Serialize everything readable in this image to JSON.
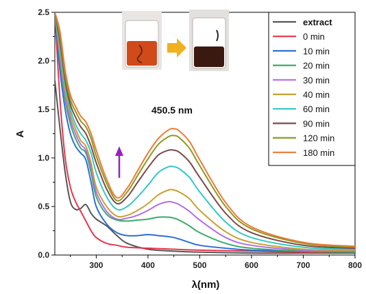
{
  "chart_data": {
    "type": "line",
    "xlabel": "λ(nm)",
    "ylabel": "A",
    "xlim": [
      220,
      800
    ],
    "ylim": [
      0,
      2.5
    ],
    "x_ticks": [
      300,
      400,
      500,
      600,
      700,
      800
    ],
    "y_ticks": [
      0.0,
      0.5,
      1.0,
      1.5,
      2.0,
      2.5
    ],
    "x_tick_labels": [
      "300",
      "400",
      "500",
      "600",
      "700",
      "800"
    ],
    "y_tick_labels": [
      "0.0",
      "0.5",
      "1.0",
      "1.5",
      "2.0",
      "2.5"
    ],
    "grid": false,
    "legend": "top-right",
    "annotation": "450.5 nm",
    "inset": "photo of two beakers: orange extract before, dark after reaction, with an orange arrow between",
    "series": [
      {
        "name": "extract",
        "color": "#555555",
        "x": [
          220,
          230,
          240,
          250,
          260,
          270,
          280,
          290,
          300,
          320,
          340,
          360,
          400,
          450,
          500,
          600,
          700,
          800
        ],
        "y": [
          1.8,
          1.3,
          0.85,
          0.55,
          0.47,
          0.48,
          0.52,
          0.43,
          0.37,
          0.3,
          0.2,
          0.12,
          0.06,
          0.04,
          0.03,
          0.02,
          0.02,
          0.02
        ]
      },
      {
        "name": "0 min",
        "color": "#e8344a",
        "x": [
          220,
          230,
          240,
          250,
          260,
          270,
          280,
          290,
          300,
          320,
          340,
          360,
          400,
          450,
          500,
          600,
          700,
          800
        ],
        "y": [
          2.5,
          1.6,
          1.0,
          0.7,
          0.55,
          0.45,
          0.35,
          0.25,
          0.18,
          0.12,
          0.1,
          0.08,
          0.07,
          0.06,
          0.05,
          0.04,
          0.03,
          0.03
        ]
      },
      {
        "name": "10 min",
        "color": "#2a6dd9",
        "x": [
          220,
          230,
          240,
          250,
          260,
          270,
          280,
          290,
          300,
          320,
          340,
          360,
          380,
          400,
          420,
          450,
          480,
          500,
          550,
          600,
          700,
          800
        ],
        "y": [
          2.5,
          1.9,
          1.5,
          1.25,
          1.12,
          1.05,
          0.98,
          0.75,
          0.5,
          0.32,
          0.23,
          0.2,
          0.2,
          0.21,
          0.2,
          0.18,
          0.13,
          0.1,
          0.07,
          0.05,
          0.04,
          0.03
        ]
      },
      {
        "name": "20 min",
        "color": "#3aaa6a",
        "x": [
          220,
          230,
          240,
          250,
          260,
          270,
          280,
          290,
          300,
          320,
          340,
          360,
          380,
          400,
          420,
          440,
          450,
          460,
          480,
          500,
          550,
          600,
          700,
          800
        ],
        "y": [
          2.5,
          2.0,
          1.6,
          1.35,
          1.2,
          1.1,
          1.05,
          0.85,
          0.6,
          0.42,
          0.36,
          0.35,
          0.36,
          0.37,
          0.39,
          0.39,
          0.38,
          0.36,
          0.3,
          0.23,
          0.12,
          0.07,
          0.04,
          0.03
        ]
      },
      {
        "name": "30 min",
        "color": "#b26de8",
        "x": [
          220,
          230,
          240,
          250,
          260,
          270,
          280,
          290,
          300,
          320,
          340,
          360,
          380,
          400,
          420,
          440,
          450,
          460,
          480,
          500,
          550,
          600,
          700,
          800
        ],
        "y": [
          2.5,
          2.05,
          1.65,
          1.4,
          1.25,
          1.14,
          1.08,
          0.9,
          0.65,
          0.45,
          0.37,
          0.38,
          0.41,
          0.46,
          0.52,
          0.55,
          0.54,
          0.52,
          0.45,
          0.36,
          0.18,
          0.1,
          0.05,
          0.04
        ]
      },
      {
        "name": "40 min",
        "color": "#c8a030",
        "x": [
          220,
          230,
          240,
          250,
          260,
          270,
          280,
          290,
          300,
          320,
          340,
          360,
          380,
          400,
          420,
          440,
          450,
          460,
          480,
          500,
          550,
          600,
          700,
          800
        ],
        "y": [
          2.5,
          2.1,
          1.7,
          1.45,
          1.3,
          1.18,
          1.12,
          0.95,
          0.7,
          0.5,
          0.4,
          0.41,
          0.46,
          0.53,
          0.62,
          0.67,
          0.67,
          0.65,
          0.58,
          0.46,
          0.24,
          0.13,
          0.06,
          0.05
        ]
      },
      {
        "name": "60 min",
        "color": "#30c8c8",
        "x": [
          220,
          230,
          240,
          250,
          260,
          270,
          280,
          290,
          300,
          320,
          340,
          360,
          380,
          400,
          420,
          440,
          450,
          460,
          480,
          500,
          550,
          600,
          700,
          800
        ],
        "y": [
          2.5,
          2.15,
          1.75,
          1.5,
          1.35,
          1.25,
          1.18,
          1.05,
          0.85,
          0.6,
          0.47,
          0.5,
          0.6,
          0.72,
          0.85,
          0.91,
          0.91,
          0.89,
          0.8,
          0.65,
          0.34,
          0.18,
          0.08,
          0.06
        ]
      },
      {
        "name": "90 min",
        "color": "#7a4848",
        "x": [
          220,
          230,
          240,
          250,
          260,
          270,
          280,
          290,
          300,
          320,
          340,
          360,
          380,
          400,
          420,
          440,
          450,
          460,
          480,
          500,
          550,
          600,
          700,
          800
        ],
        "y": [
          2.5,
          2.2,
          1.8,
          1.55,
          1.42,
          1.32,
          1.25,
          1.12,
          0.95,
          0.68,
          0.53,
          0.6,
          0.75,
          0.9,
          1.03,
          1.08,
          1.08,
          1.06,
          0.96,
          0.8,
          0.43,
          0.23,
          0.1,
          0.07
        ]
      },
      {
        "name": "120 min",
        "color": "#8a9a20",
        "x": [
          220,
          230,
          240,
          250,
          260,
          270,
          280,
          290,
          300,
          320,
          340,
          360,
          380,
          400,
          420,
          440,
          450,
          460,
          480,
          500,
          550,
          600,
          700,
          800
        ],
        "y": [
          2.5,
          2.25,
          1.85,
          1.6,
          1.48,
          1.38,
          1.32,
          1.2,
          1.02,
          0.74,
          0.56,
          0.65,
          0.82,
          0.99,
          1.14,
          1.22,
          1.23,
          1.21,
          1.1,
          0.92,
          0.5,
          0.27,
          0.12,
          0.08
        ]
      },
      {
        "name": "180 min",
        "color": "#f07830",
        "x": [
          220,
          230,
          240,
          250,
          260,
          270,
          280,
          290,
          300,
          320,
          340,
          360,
          380,
          400,
          420,
          440,
          450,
          460,
          480,
          500,
          550,
          600,
          700,
          800
        ],
        "y": [
          2.5,
          2.3,
          1.9,
          1.65,
          1.53,
          1.43,
          1.37,
          1.25,
          1.08,
          0.78,
          0.59,
          0.69,
          0.87,
          1.05,
          1.2,
          1.29,
          1.3,
          1.28,
          1.17,
          0.98,
          0.54,
          0.29,
          0.13,
          0.09
        ]
      }
    ]
  }
}
